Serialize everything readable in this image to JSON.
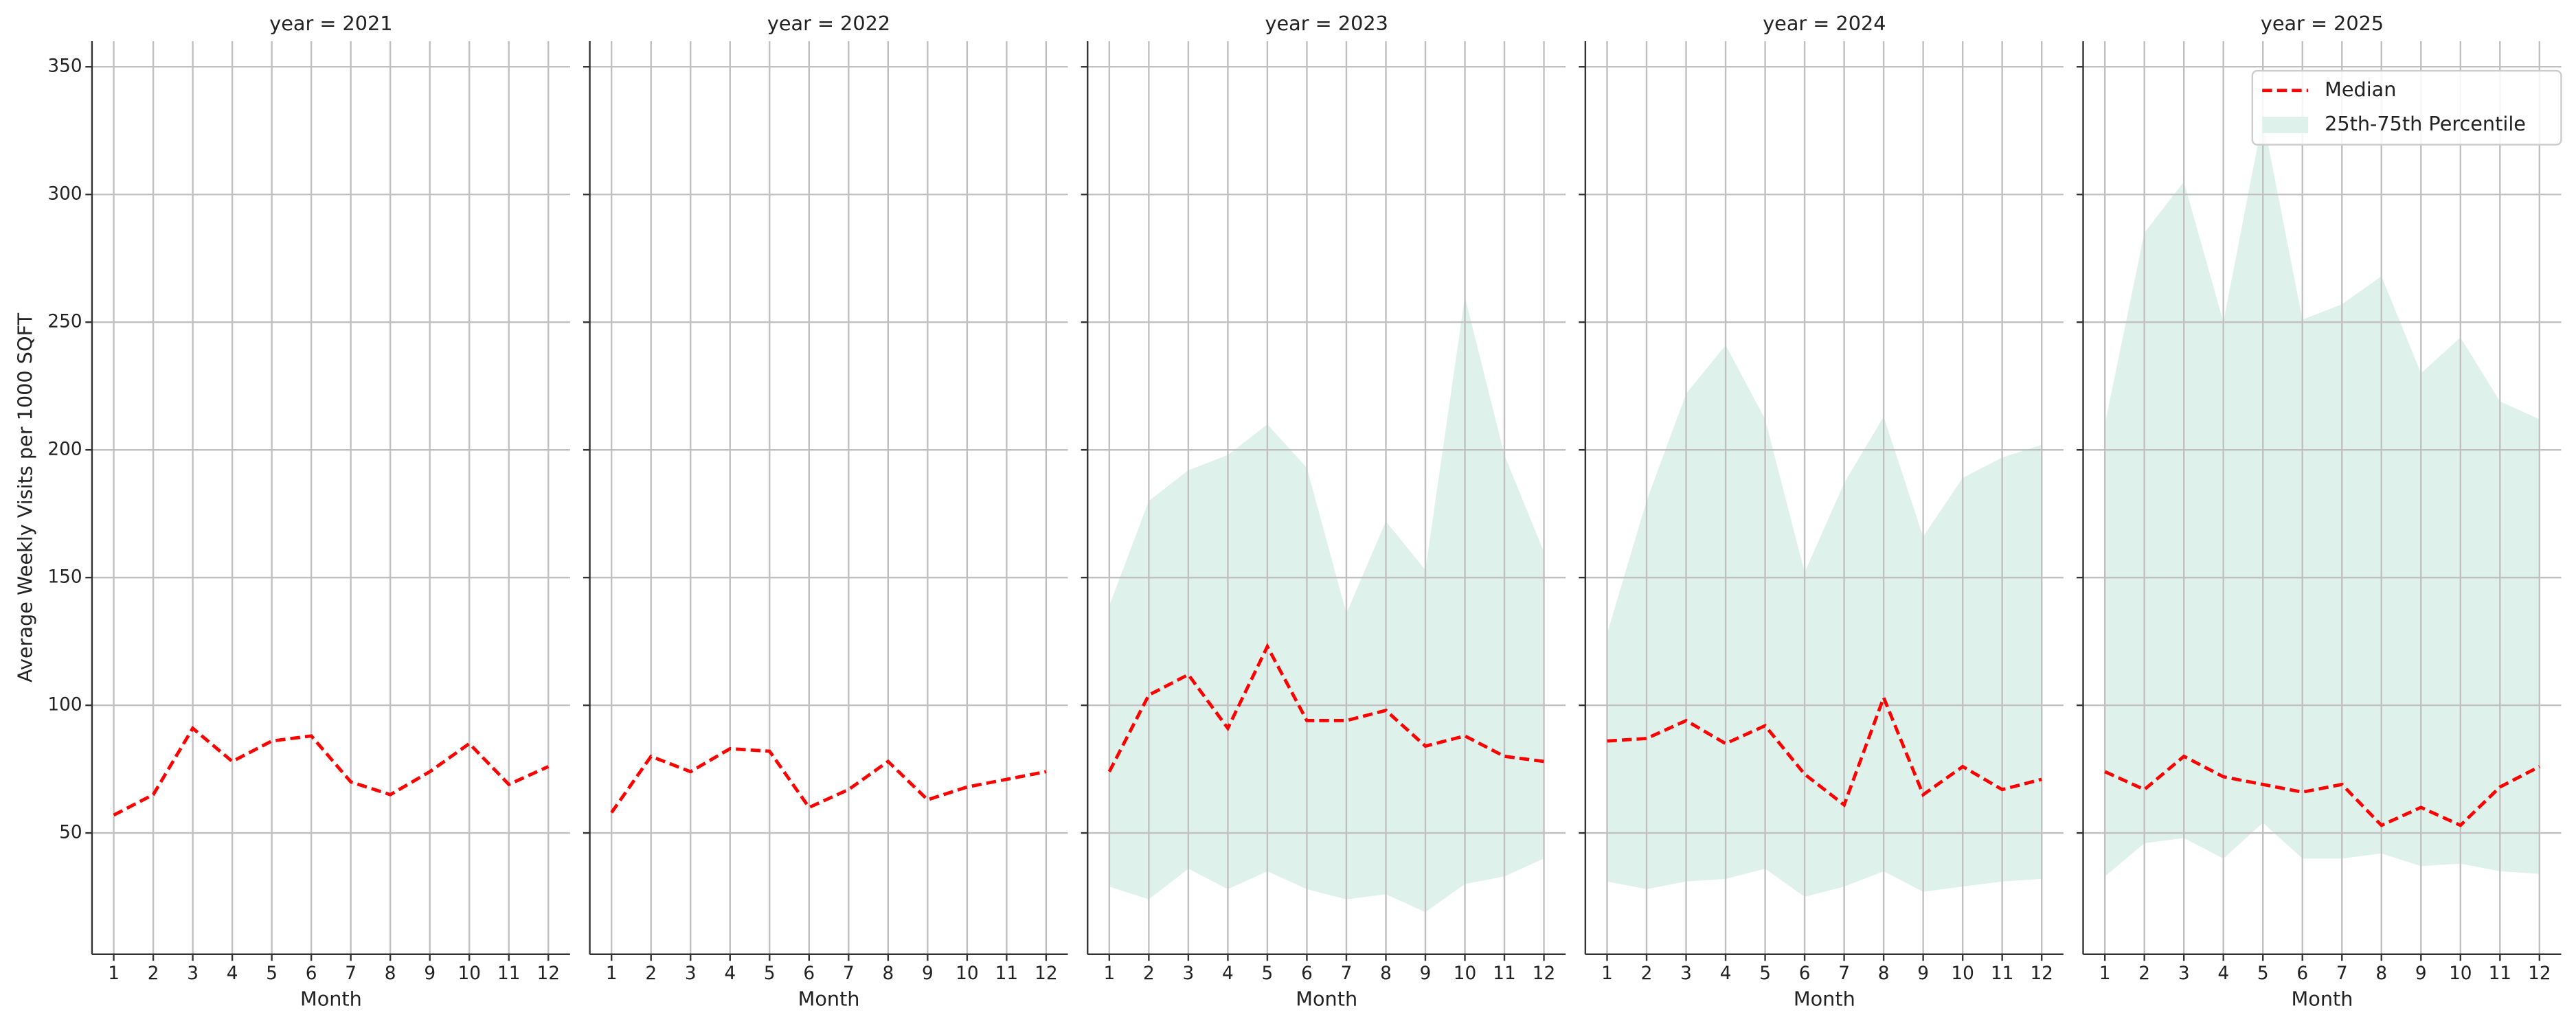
{
  "chart_data": [
    {
      "type": "line",
      "title": "year = 2021",
      "xlabel": "Month",
      "ylabel": "Average Weekly Visits per 1000 SQFT",
      "x": [
        1,
        2,
        3,
        4,
        5,
        6,
        7,
        8,
        9,
        10,
        11,
        12
      ],
      "xlim": [
        0.45,
        12.55
      ],
      "ylim": [
        2.5,
        360
      ],
      "yticks": [
        50,
        100,
        150,
        200,
        250,
        300,
        350
      ],
      "grid": true,
      "series": [
        {
          "color": "#ff0000",
          "values": [
            57,
            65,
            91,
            78,
            86,
            88,
            70,
            65,
            74,
            85,
            69,
            76
          ]
        }
      ]
    },
    {
      "type": "line",
      "title": "year = 2022",
      "xlabel": "Month",
      "x": [
        1,
        2,
        3,
        4,
        5,
        6,
        7,
        8,
        9,
        10,
        11,
        12
      ],
      "xlim": [
        0.45,
        12.55
      ],
      "ylim": [
        2.5,
        360
      ],
      "grid": true,
      "series": [
        {
          "color": "#ff0000",
          "values": [
            58,
            80,
            74,
            83,
            82,
            60,
            67,
            78,
            63,
            68,
            71,
            74
          ]
        }
      ]
    },
    {
      "type": "line",
      "title": "year = 2023",
      "xlabel": "Month",
      "x": [
        1,
        2,
        3,
        4,
        5,
        6,
        7,
        8,
        9,
        10,
        11,
        12
      ],
      "xlim": [
        0.45,
        12.55
      ],
      "ylim": [
        2.5,
        360
      ],
      "grid": true,
      "series": [
        {
          "color": "#ff0000",
          "values": [
            74,
            104,
            112,
            91,
            123,
            94,
            94,
            98,
            84,
            88,
            80,
            78
          ]
        }
      ],
      "band": {
        "color": "#dff1eb",
        "lower": [
          29,
          24,
          36,
          28,
          35,
          28,
          24,
          26,
          19,
          30,
          33,
          40
        ],
        "upper": [
          139,
          180,
          192,
          198,
          210,
          193,
          136,
          172,
          153,
          260,
          198,
          160
        ]
      }
    },
    {
      "type": "line",
      "title": "year = 2024",
      "xlabel": "Month",
      "x": [
        1,
        2,
        3,
        4,
        5,
        6,
        7,
        8,
        9,
        10,
        11,
        12
      ],
      "xlim": [
        0.45,
        12.55
      ],
      "ylim": [
        2.5,
        360
      ],
      "grid": true,
      "series": [
        {
          "color": "#ff0000",
          "values": [
            86,
            87,
            94,
            85,
            92,
            73,
            61,
            103,
            65,
            76,
            67,
            71
          ]
        }
      ],
      "band": {
        "color": "#dff1eb",
        "lower": [
          31,
          28,
          31,
          32,
          36,
          25,
          29,
          35,
          27,
          29,
          31,
          32
        ],
        "upper": [
          128,
          180,
          222,
          241,
          212,
          152,
          187,
          213,
          166,
          189,
          197,
          202
        ]
      }
    },
    {
      "type": "line",
      "title": "year = 2025",
      "xlabel": "Month",
      "x": [
        1,
        2,
        3,
        4,
        5,
        6,
        7,
        8,
        9,
        10,
        11,
        12
      ],
      "xlim": [
        0.45,
        12.55
      ],
      "ylim": [
        2.5,
        360
      ],
      "grid": true,
      "legend": "upper right",
      "series": [
        {
          "name": "Median",
          "color": "#ff0000",
          "values": [
            74,
            67,
            80,
            72,
            69,
            66,
            69,
            53,
            60,
            53,
            68,
            76
          ]
        }
      ],
      "band": {
        "name": "25th-75th Percentile",
        "color": "#dff1eb",
        "lower": [
          33,
          46,
          48,
          40,
          54,
          40,
          40,
          42,
          37,
          38,
          35,
          34
        ],
        "upper": [
          210,
          285,
          305,
          250,
          330,
          251,
          257,
          268,
          230,
          244,
          219,
          212
        ]
      }
    }
  ]
}
